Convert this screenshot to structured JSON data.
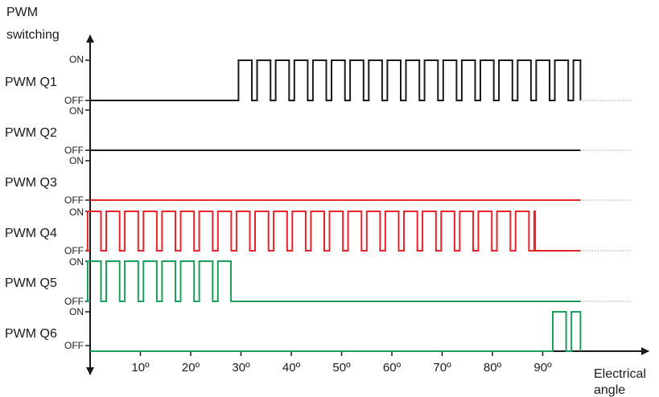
{
  "axes": {
    "y_label_line1": "PWM",
    "y_label_line2": "switching",
    "x_label_line1": "Electrical",
    "x_label_line2": "angle",
    "x_ticks": [
      "10º",
      "20º",
      "30º",
      "40º",
      "50º",
      "60º",
      "70º",
      "80º",
      "90º"
    ],
    "tick_values": [
      10,
      20,
      30,
      40,
      50,
      60,
      70,
      80,
      90
    ],
    "x_range_deg": [
      -1.5,
      97.5
    ]
  },
  "levels": {
    "on": "ON",
    "off": "OFF"
  },
  "colors": {
    "black": "#1a1a1a",
    "red": "#e8232a",
    "green": "#19a05a",
    "dotted": "#9a9a9a"
  },
  "chart_data": {
    "type": "line",
    "x_unit": "degrees",
    "xlabel": "Electrical angle",
    "ylabel": "PWM switching",
    "series": [
      {
        "name": "PWM Q1",
        "color": "#1a1a1a",
        "pwm_start": 29.5,
        "pwm_end": 97.5,
        "period": 3.7,
        "duty": 0.72
      },
      {
        "name": "PWM Q2",
        "color": "#1a1a1a",
        "pwm_start": null,
        "pwm_end": null,
        "period": null,
        "duty": null
      },
      {
        "name": "PWM Q3",
        "color": "#e8232a",
        "pwm_start": null,
        "pwm_end": null,
        "period": null,
        "duty": null
      },
      {
        "name": "PWM Q4",
        "color": "#e8232a",
        "pwm_start": -0.5,
        "pwm_end": 88.5,
        "period": 3.7,
        "duty": 0.72
      },
      {
        "name": "PWM Q5",
        "color": "#19a05a",
        "pwm_start": -0.5,
        "pwm_end": 28.0,
        "period": 3.7,
        "duty": 0.72
      },
      {
        "name": "PWM Q6",
        "color": "#19a05a",
        "pwm_start": 92.0,
        "pwm_end": 97.5,
        "period": 3.7,
        "duty": 0.72
      }
    ]
  }
}
